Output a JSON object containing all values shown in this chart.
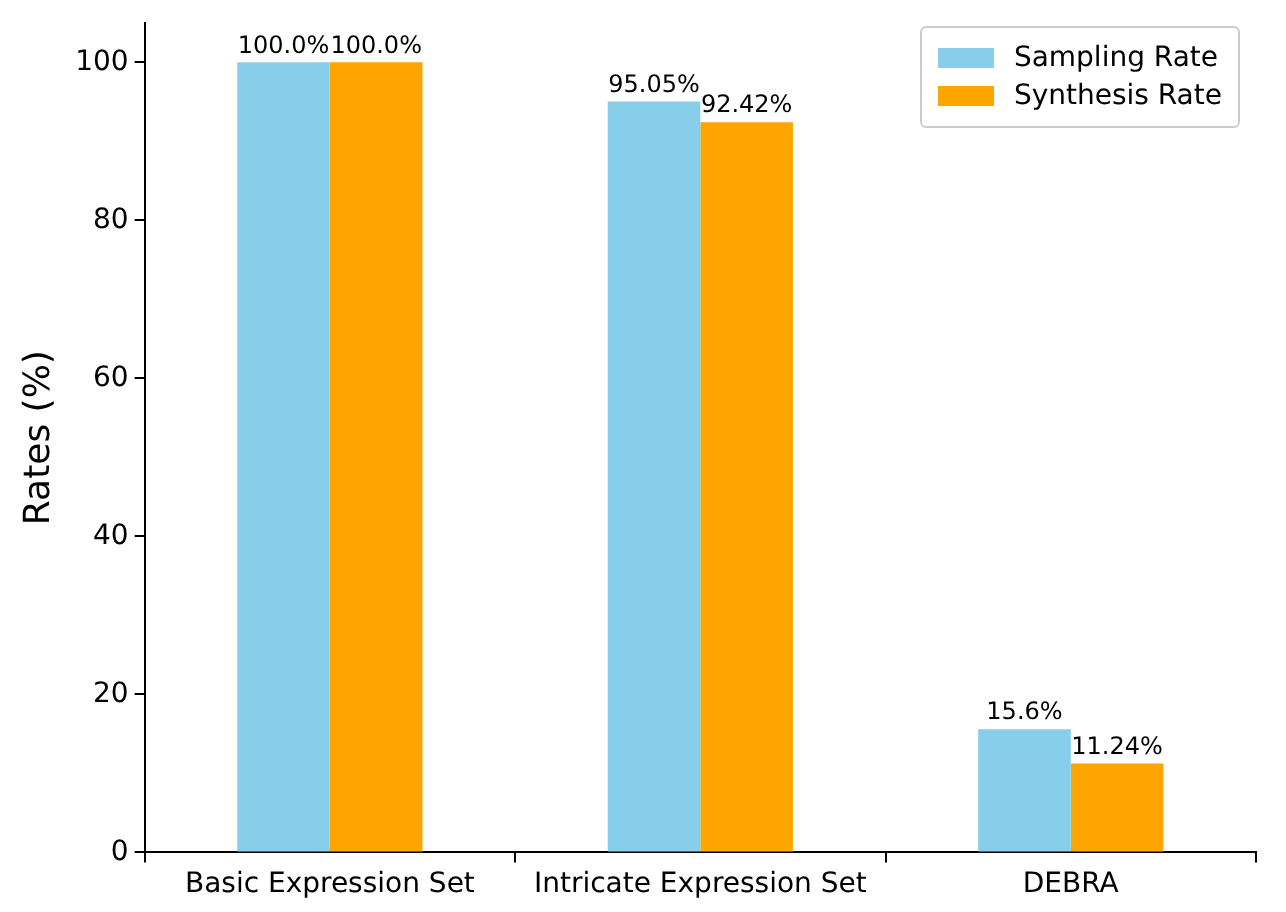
{
  "chart_data": {
    "type": "bar",
    "ylabel": "Rates (%)",
    "categories": [
      "Basic Expression Set",
      "Intricate Expression Set",
      "DEBRA"
    ],
    "series": [
      {
        "name": "Sampling Rate",
        "color": "#87ceeb",
        "values": [
          100.0,
          95.05,
          15.6
        ],
        "value_labels": [
          "100.0%",
          "95.05%",
          "15.6%"
        ]
      },
      {
        "name": "Synthesis Rate",
        "color": "#ffa500",
        "values": [
          100.0,
          92.42,
          11.24
        ],
        "value_labels": [
          "100.0%",
          "92.42%",
          "11.24%"
        ]
      }
    ],
    "ylim": [
      0,
      105
    ],
    "yticks": [
      0,
      20,
      40,
      60,
      80,
      100
    ],
    "grid": false,
    "legend": "top right"
  }
}
